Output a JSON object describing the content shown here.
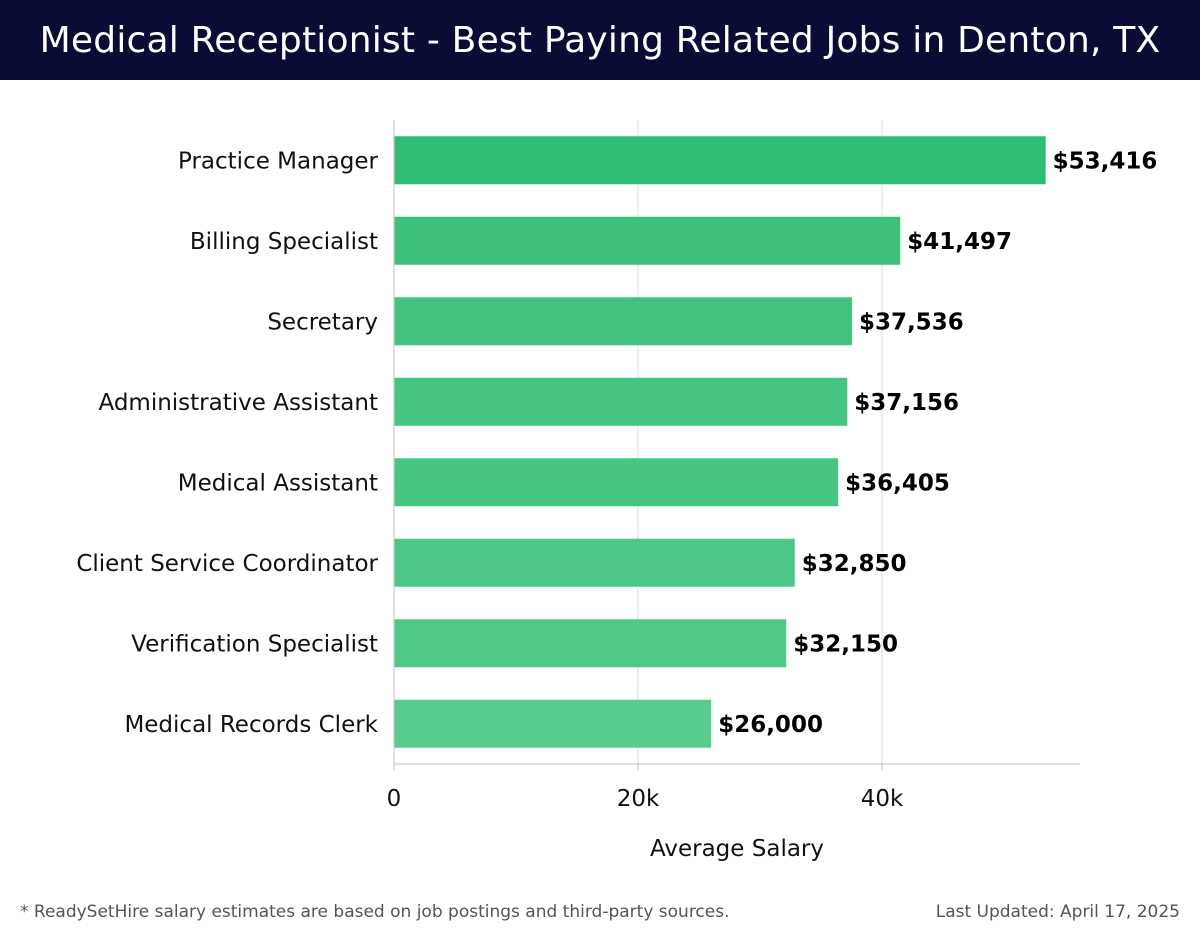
{
  "header": {
    "title": "Medical Receptionist - Best Paying Related Jobs in Denton, TX"
  },
  "chart_data": {
    "type": "bar",
    "orientation": "horizontal",
    "categories": [
      "Practice Manager",
      "Billing Specialist",
      "Secretary",
      "Administrative Assistant",
      "Medical Assistant",
      "Client Service Coordinator",
      "Verification Specialist",
      "Medical Records Clerk"
    ],
    "values": [
      53416,
      41497,
      37536,
      37156,
      36405,
      32850,
      32150,
      26000
    ],
    "value_labels": [
      "$53,416",
      "$41,497",
      "$37,536",
      "$37,156",
      "$36,405",
      "$32,850",
      "$32,150",
      "$26,000"
    ],
    "xlabel": "Average Salary",
    "xlim": [
      0,
      56000
    ],
    "xticks": [
      0,
      20000,
      40000
    ],
    "xtick_labels": [
      "0",
      "20k",
      "40k"
    ],
    "grid": true,
    "colors": [
      "#2ebd74",
      "#3ec17d",
      "#43c380",
      "#45c482",
      "#47c583",
      "#4cc787",
      "#4fc888",
      "#58cb8e"
    ]
  },
  "footer": {
    "note": "* ReadySetHire salary estimates are based on job postings and third-party sources.",
    "updated": "Last Updated: April 17, 2025"
  }
}
